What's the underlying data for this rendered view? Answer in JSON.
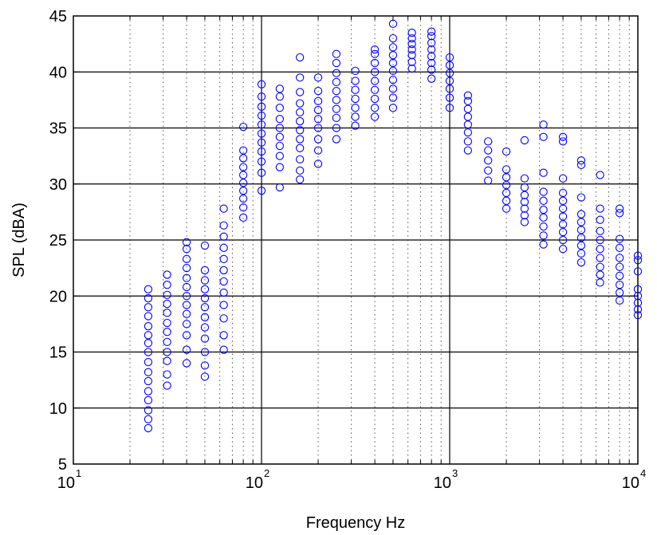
{
  "chart_data": {
    "type": "scatter",
    "title": "",
    "xlabel": "Frequency Hz",
    "ylabel": "SPL (dBA)",
    "xscale": "log",
    "xlim": [
      10,
      10000
    ],
    "ylim": [
      5,
      45
    ],
    "grid": "on",
    "minor_grid": "on",
    "marker": "circle",
    "marker_color": "#0000ff",
    "x_ticks": [
      {
        "base": "10",
        "exp": "1",
        "value": 10
      },
      {
        "base": "10",
        "exp": "2",
        "value": 100
      },
      {
        "base": "10",
        "exp": "3",
        "value": 1000
      },
      {
        "base": "10",
        "exp": "4",
        "value": 10000
      }
    ],
    "y_ticks": [
      "5",
      "10",
      "15",
      "20",
      "25",
      "30",
      "35",
      "40",
      "45"
    ],
    "bands": [
      {
        "x": 25,
        "values": [
          8.2,
          9.0,
          9.8,
          10.7,
          11.5,
          12.4,
          13.2,
          14.1,
          15.0,
          15.8,
          16.5,
          17.3,
          18.2,
          19.0,
          19.8,
          20.6
        ]
      },
      {
        "x": 31.5,
        "values": [
          12.0,
          13.0,
          14.2,
          15.0,
          15.9,
          16.8,
          17.6,
          18.5,
          19.3,
          20.1,
          21.0,
          21.9
        ]
      },
      {
        "x": 40,
        "values": [
          14.0,
          15.2,
          16.5,
          17.5,
          18.4,
          19.2,
          20.0,
          20.8,
          21.6,
          22.5,
          23.3,
          24.2,
          24.8
        ]
      },
      {
        "x": 50,
        "values": [
          12.8,
          13.8,
          15.0,
          16.2,
          17.2,
          18.1,
          19.0,
          19.8,
          20.6,
          21.4,
          22.3,
          24.5
        ]
      },
      {
        "x": 63,
        "values": [
          15.2,
          16.5,
          18.0,
          19.2,
          20.3,
          21.3,
          22.3,
          23.3,
          24.3,
          25.3,
          26.3,
          27.8
        ]
      },
      {
        "x": 80,
        "values": [
          27.0,
          27.9,
          28.7,
          29.4,
          30.1,
          30.8,
          31.5,
          32.3,
          33.0,
          35.1
        ]
      },
      {
        "x": 100,
        "values": [
          29.4,
          31.0,
          32.0,
          32.9,
          33.7,
          34.5,
          35.3,
          36.1,
          36.9,
          37.8,
          38.9
        ]
      },
      {
        "x": 125,
        "values": [
          29.7,
          31.5,
          32.5,
          33.4,
          34.2,
          35.0,
          35.8,
          36.8,
          37.8,
          38.5
        ]
      },
      {
        "x": 160,
        "values": [
          30.4,
          31.2,
          32.2,
          33.2,
          34.0,
          34.8,
          35.6,
          36.4,
          37.2,
          38.2,
          39.5,
          41.3
        ]
      },
      {
        "x": 200,
        "values": [
          31.8,
          33.0,
          34.0,
          35.0,
          35.8,
          36.6,
          37.4,
          38.3,
          39.5
        ]
      },
      {
        "x": 250,
        "values": [
          34.0,
          35.0,
          35.9,
          36.7,
          37.5,
          38.3,
          39.1,
          39.9,
          40.8,
          41.6
        ]
      },
      {
        "x": 315,
        "values": [
          35.2,
          36.0,
          36.8,
          37.6,
          38.4,
          39.2,
          40.1
        ]
      },
      {
        "x": 400,
        "values": [
          36.0,
          36.8,
          37.6,
          38.4,
          39.2,
          40.0,
          40.8,
          41.6,
          42.0
        ]
      },
      {
        "x": 500,
        "values": [
          36.8,
          37.7,
          38.5,
          39.3,
          40.1,
          40.8,
          41.5,
          42.2,
          43.0,
          44.3
        ]
      },
      {
        "x": 630,
        "values": [
          40.3,
          40.9,
          41.5,
          42.0,
          42.5,
          43.0,
          43.5
        ]
      },
      {
        "x": 800,
        "values": [
          39.4,
          40.2,
          40.8,
          41.4,
          42.0,
          42.6,
          43.2,
          43.6
        ]
      },
      {
        "x": 1000,
        "values": [
          36.8,
          37.7,
          38.5,
          39.2,
          39.9,
          40.6,
          41.3
        ]
      },
      {
        "x": 1250,
        "values": [
          33.0,
          33.8,
          34.6,
          35.3,
          36.0,
          36.7,
          37.4,
          37.9
        ]
      },
      {
        "x": 1600,
        "values": [
          30.3,
          31.2,
          32.1,
          33.0,
          33.8
        ]
      },
      {
        "x": 2000,
        "values": [
          27.8,
          28.5,
          29.2,
          29.9,
          30.6,
          31.3,
          32.9
        ]
      },
      {
        "x": 2500,
        "values": [
          26.6,
          27.2,
          27.8,
          28.4,
          29.0,
          29.7,
          30.5,
          33.9
        ]
      },
      {
        "x": 3150,
        "values": [
          24.6,
          25.4,
          26.2,
          27.0,
          27.7,
          28.5,
          29.3,
          31.0,
          34.2,
          35.3
        ]
      },
      {
        "x": 4000,
        "values": [
          24.2,
          25.0,
          25.7,
          26.4,
          27.1,
          27.8,
          28.5,
          29.2,
          30.5,
          33.8,
          34.2
        ]
      },
      {
        "x": 5000,
        "values": [
          23.0,
          23.8,
          24.5,
          25.2,
          25.9,
          26.6,
          27.3,
          28.8,
          31.7,
          32.1
        ]
      },
      {
        "x": 6300,
        "values": [
          21.2,
          21.9,
          22.6,
          23.4,
          24.2,
          25.0,
          25.8,
          26.8,
          27.8,
          30.8
        ]
      },
      {
        "x": 8000,
        "values": [
          19.6,
          20.3,
          21.0,
          21.8,
          22.6,
          23.4,
          24.3,
          25.1,
          27.4,
          27.8
        ]
      },
      {
        "x": 10000,
        "values": [
          18.3,
          18.8,
          19.4,
          20.0,
          20.6,
          22.2,
          23.2,
          23.6
        ]
      }
    ]
  }
}
